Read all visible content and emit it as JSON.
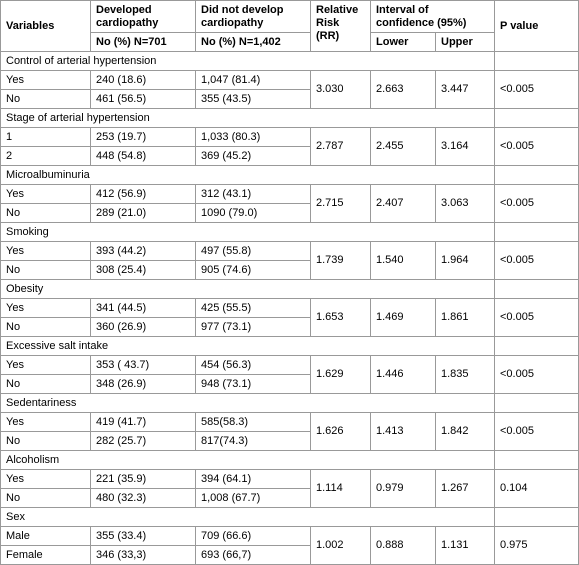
{
  "header": {
    "variables": "Variables",
    "developed": "Developed cardiopathy",
    "not_developed": "Did not develop cardiopathy",
    "rr": "Relative Risk (RR)",
    "interval": "Interval of confidence (95%)",
    "p_value": "P value",
    "developed_n": "No (%) N=701",
    "not_developed_n": "No (%) N=1,402",
    "lower": "Lower",
    "upper": "Upper"
  },
  "groups": [
    {
      "title": "Control of arterial hypertension",
      "rows": [
        [
          "Yes",
          "240 (18.6)",
          "1,047 (81.4)"
        ],
        [
          "No",
          "461 (56.5)",
          "355 (43.5)"
        ]
      ],
      "rr": "3.030",
      "lower": "2.663",
      "upper": "3.447",
      "p": "<0.005"
    },
    {
      "title": "Stage of arterial hypertension",
      "rows": [
        [
          "1",
          "253 (19.7)",
          "1,033 (80.3)"
        ],
        [
          "2",
          "448 (54.8)",
          "369 (45.2)"
        ]
      ],
      "rr": "2.787",
      "lower": "2.455",
      "upper": "3.164",
      "p": "<0.005"
    },
    {
      "title": "Microalbuminuria",
      "rows": [
        [
          "Yes",
          "412 (56.9)",
          "312 (43.1)"
        ],
        [
          "No",
          "289 (21.0)",
          "1090 (79.0)"
        ]
      ],
      "rr": "2.715",
      "lower": "2.407",
      "upper": "3.063",
      "p": "<0.005"
    },
    {
      "title": "Smoking",
      "rows": [
        [
          "Yes",
          "393 (44.2)",
          "497 (55.8)"
        ],
        [
          "No",
          "308 (25.4)",
          "905 (74.6)"
        ]
      ],
      "rr": "1.739",
      "lower": "1.540",
      "upper": "1.964",
      "p": "<0.005"
    },
    {
      "title": "Obesity",
      "rows": [
        [
          "Yes",
          "341 (44.5)",
          "425 (55.5)"
        ],
        [
          "No",
          "360 (26.9)",
          "977 (73.1)"
        ]
      ],
      "rr": "1.653",
      "lower": "1.469",
      "upper": "1.861",
      "p": "<0.005"
    },
    {
      "title": "Excessive salt intake",
      "rows": [
        [
          "Yes",
          "353 ( 43.7)",
          "454 (56.3)"
        ],
        [
          "No",
          "348 (26.9)",
          "948 (73.1)"
        ]
      ],
      "rr": "1.629",
      "lower": "1.446",
      "upper": "1.835",
      "p": "<0.005"
    },
    {
      "title": "Sedentariness",
      "rows": [
        [
          "Yes",
          "419 (41.7)",
          "585(58.3)"
        ],
        [
          "No",
          "282 (25.7)",
          "817(74.3)"
        ]
      ],
      "rr": "1.626",
      "lower": "1.413",
      "upper": "1.842",
      "p": "<0.005"
    },
    {
      "title": "Alcoholism",
      "rows": [
        [
          "Yes",
          "221 (35.9)",
          "394 (64.1)"
        ],
        [
          "No",
          "480 (32.3)",
          "1,008 (67.7)"
        ]
      ],
      "rr": "1.114",
      "lower": "0.979",
      "upper": "1.267",
      "p": "0.104"
    },
    {
      "title": "Sex",
      "rows": [
        [
          "Male",
          "355 (33.4)",
          "709 (66.6)"
        ],
        [
          "Female",
          "346 (33,3)",
          "693 (66,7)"
        ]
      ],
      "rr": "1.002",
      "lower": "0.888",
      "upper": "1.131",
      "p": "0.975"
    }
  ]
}
